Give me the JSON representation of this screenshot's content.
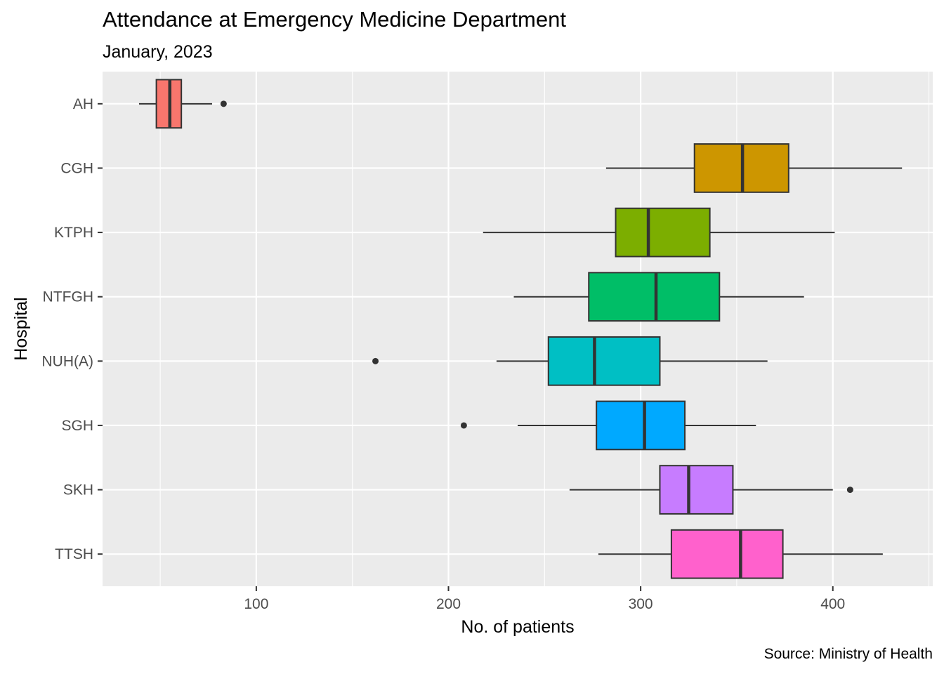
{
  "chart_data": {
    "type": "boxplot",
    "orientation": "horizontal",
    "title": "Attendance at Emergency Medicine Department",
    "subtitle": "January, 2023",
    "caption": "Source: Ministry of Health",
    "xlabel": "No. of patients",
    "ylabel": "Hospital",
    "xlim": [
      20,
      452
    ],
    "x_ticks": [
      100,
      200,
      300,
      400
    ],
    "x_tick_labels": [
      "100",
      "200",
      "300",
      "400"
    ],
    "grid": true,
    "legend": "none",
    "background": "#ebebeb",
    "categories": [
      "AH",
      "CGH",
      "KTPH",
      "NTFGH",
      "NUH(A)",
      "SGH",
      "SKH",
      "TTSH"
    ],
    "series": [
      {
        "category": "AH",
        "color": "#F8766D",
        "whisker_low": 39,
        "q1": 48,
        "median": 55,
        "q3": 61,
        "whisker_high": 77,
        "outliers": [
          83
        ]
      },
      {
        "category": "CGH",
        "color": "#CD9600",
        "whisker_low": 282,
        "q1": 328,
        "median": 353,
        "q3": 377,
        "whisker_high": 436,
        "outliers": []
      },
      {
        "category": "KTPH",
        "color": "#7CAE00",
        "whisker_low": 218,
        "q1": 287,
        "median": 304,
        "q3": 336,
        "whisker_high": 401,
        "outliers": []
      },
      {
        "category": "NTFGH",
        "color": "#00BE67",
        "whisker_low": 234,
        "q1": 273,
        "median": 308,
        "q3": 341,
        "whisker_high": 385,
        "outliers": []
      },
      {
        "category": "NUH(A)",
        "color": "#00BFC4",
        "whisker_low": 225,
        "q1": 252,
        "median": 276,
        "q3": 310,
        "whisker_high": 366,
        "outliers": [
          162
        ]
      },
      {
        "category": "SGH",
        "color": "#00A9FF",
        "whisker_low": 236,
        "q1": 277,
        "median": 302,
        "q3": 323,
        "whisker_high": 360,
        "outliers": [
          208
        ]
      },
      {
        "category": "SKH",
        "color": "#C77CFF",
        "whisker_low": 263,
        "q1": 310,
        "median": 325,
        "q3": 348,
        "whisker_high": 400,
        "outliers": [
          409
        ]
      },
      {
        "category": "TTSH",
        "color": "#FF61CC",
        "whisker_low": 278,
        "q1": 316,
        "median": 352,
        "q3": 374,
        "whisker_high": 426,
        "outliers": []
      }
    ]
  }
}
